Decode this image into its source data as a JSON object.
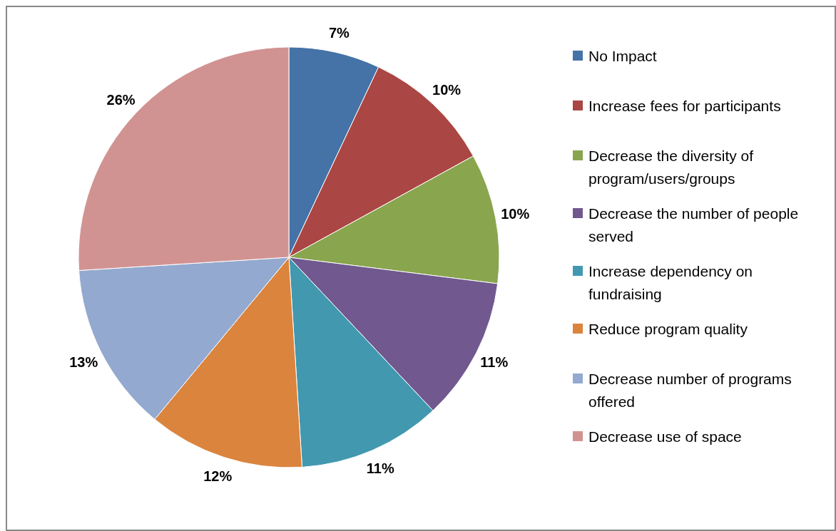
{
  "chart_data": {
    "type": "pie",
    "categories": [
      "No Impact",
      "Increase fees for participants",
      "Decrease the diversity of program/users/groups",
      "Decrease the number of people served",
      "Increase dependency on fundraising",
      "Reduce program quality",
      "Decrease number of programs offered",
      "Decrease use of space"
    ],
    "values": [
      7,
      10,
      10,
      11,
      11,
      12,
      13,
      26
    ],
    "colors": [
      "#4572a7",
      "#aa4643",
      "#89a54e",
      "#71588f",
      "#4198af",
      "#db843d",
      "#93a9cf",
      "#d19392"
    ],
    "value_labels": [
      "7%",
      "10%",
      "10%",
      "11%",
      "11%",
      "12%",
      "13%",
      "26%"
    ],
    "legend": "right"
  }
}
